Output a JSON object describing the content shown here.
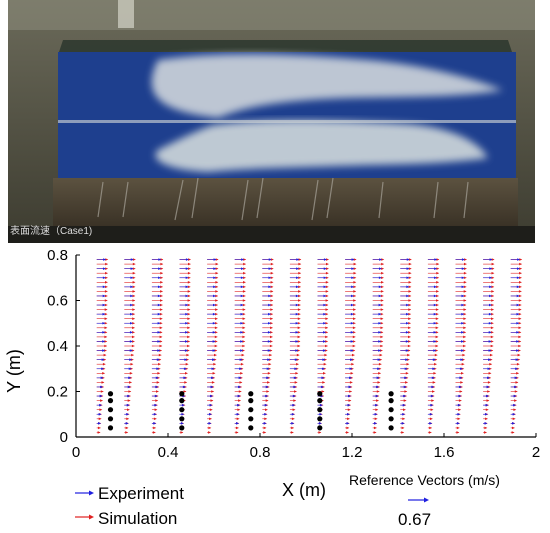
{
  "photo": {
    "caption": "表面流速（Case1)"
  },
  "chart_data": {
    "type": "quiver",
    "xlabel": "X (m)",
    "ylabel": "Y (m)",
    "xlim": [
      0,
      2
    ],
    "ylim": [
      0,
      0.8
    ],
    "xticks": [
      0,
      0.4,
      0.8,
      1.2,
      1.6,
      2
    ],
    "xtick_labels": [
      "0",
      "0.4",
      "0.8",
      "1.2",
      "1.6",
      "2"
    ],
    "yticks": [
      0,
      0.2,
      0.4,
      0.6,
      0.8
    ],
    "ytick_labels": [
      "0",
      "0.2",
      "0.4",
      "0.6",
      "0.8"
    ],
    "grid": false,
    "series": [
      {
        "name": "Experiment",
        "color": "#1f1fe0",
        "columns_x": [
          0.09,
          0.21,
          0.33,
          0.45,
          0.57,
          0.69,
          0.81,
          0.93,
          1.05,
          1.17,
          1.29,
          1.41,
          1.53,
          1.65,
          1.77,
          1.89
        ],
        "rows_y": [
          0.06,
          0.1,
          0.14,
          0.18,
          0.22,
          0.26,
          0.3,
          0.34,
          0.38,
          0.42,
          0.46,
          0.5,
          0.54,
          0.58,
          0.62,
          0.66,
          0.7,
          0.74,
          0.78
        ]
      },
      {
        "name": "Simulation",
        "color": "#e02020",
        "columns_x": [
          0.09,
          0.21,
          0.33,
          0.45,
          0.57,
          0.69,
          0.81,
          0.93,
          1.05,
          1.17,
          1.29,
          1.41,
          1.53,
          1.65,
          1.77,
          1.89
        ],
        "rows_y": [
          0.02,
          0.04,
          0.06,
          0.08,
          0.1,
          0.12,
          0.14,
          0.16,
          0.18,
          0.2,
          0.22,
          0.24,
          0.26,
          0.28,
          0.3,
          0.32,
          0.34,
          0.36,
          0.38,
          0.4,
          0.42,
          0.44,
          0.46,
          0.48,
          0.5,
          0.52,
          0.54,
          0.56,
          0.58,
          0.6,
          0.62,
          0.64,
          0.66,
          0.68,
          0.7,
          0.72,
          0.74,
          0.76,
          0.78
        ]
      }
    ],
    "obstacles": {
      "x": [
        0.15,
        0.46,
        0.76,
        1.06,
        1.37
      ],
      "y": [
        0.04,
        0.08,
        0.12,
        0.16,
        0.19
      ]
    },
    "legend": {
      "placement": "bottom-left",
      "entries": [
        "Experiment",
        "Simulation"
      ]
    },
    "reference": {
      "title": "Reference Vectors (m/s)",
      "value": "0.67",
      "color": "#1f1fe0"
    }
  }
}
